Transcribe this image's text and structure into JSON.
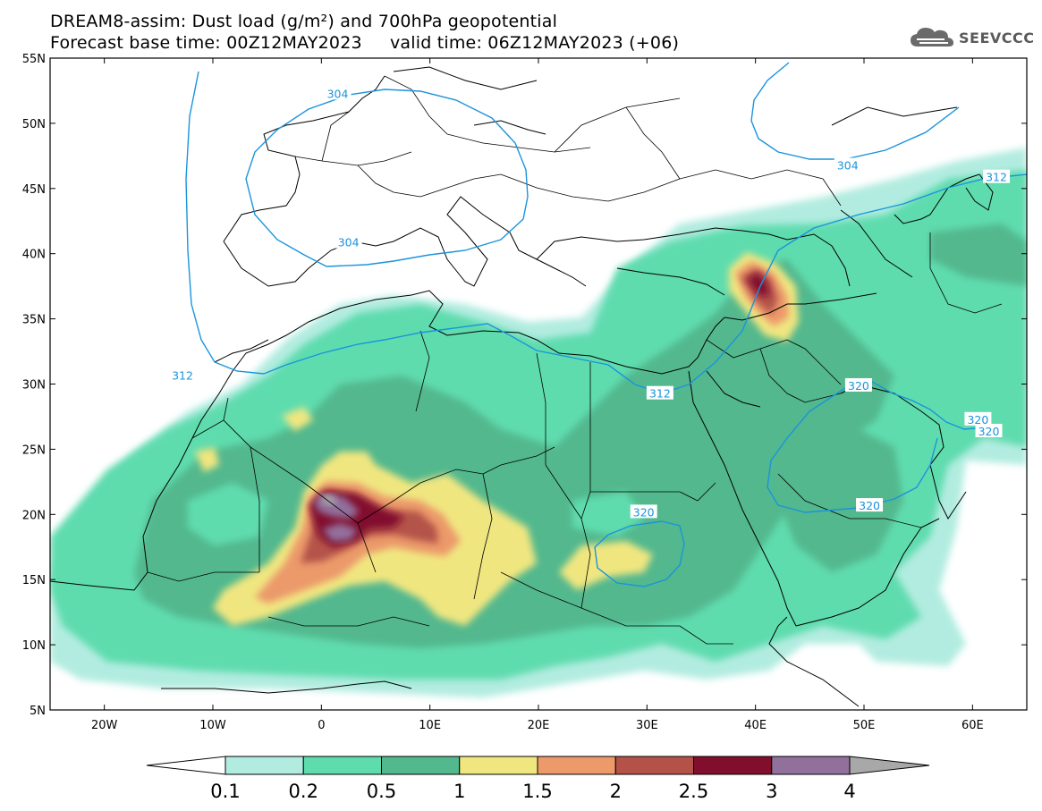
{
  "title": {
    "line1": "DREAM8-assim: Dust load (g/m²) and 700hPa geopotential",
    "line2": "Forecast base time: 00Z12MAY2023     valid time: 06Z12MAY2023 (+06)"
  },
  "logo": {
    "text": "SEEVCCC",
    "icon": "cloud-icon"
  },
  "map": {
    "lon_range": [
      -25,
      65
    ],
    "lat_range": [
      5,
      55
    ],
    "lat_ticks": [
      {
        "v": 55,
        "label": "55N"
      },
      {
        "v": 50,
        "label": "50N"
      },
      {
        "v": 45,
        "label": "45N"
      },
      {
        "v": 40,
        "label": "40N"
      },
      {
        "v": 35,
        "label": "35N"
      },
      {
        "v": 30,
        "label": "30N"
      },
      {
        "v": 25,
        "label": "25N"
      },
      {
        "v": 20,
        "label": "20N"
      },
      {
        "v": 15,
        "label": "15N"
      },
      {
        "v": 10,
        "label": "10N"
      },
      {
        "v": 5,
        "label": "5N"
      }
    ],
    "lon_ticks": [
      {
        "v": -20,
        "label": "20W"
      },
      {
        "v": -10,
        "label": "10W"
      },
      {
        "v": 0,
        "label": "0"
      },
      {
        "v": 10,
        "label": "10E"
      },
      {
        "v": 20,
        "label": "20E"
      },
      {
        "v": 30,
        "label": "30E"
      },
      {
        "v": 40,
        "label": "40E"
      },
      {
        "v": 50,
        "label": "50E"
      },
      {
        "v": 60,
        "label": "60E"
      }
    ],
    "contour_labels": [
      {
        "text": "304",
        "lon": 1.5,
        "lat": 52.3
      },
      {
        "text": "304",
        "lon": 2.5,
        "lat": 40.9
      },
      {
        "text": "304",
        "lon": 48.5,
        "lat": 46.8
      },
      {
        "text": "312",
        "lon": -12.8,
        "lat": 30.7
      },
      {
        "text": "312",
        "lon": 31.2,
        "lat": 29.3
      },
      {
        "text": "312",
        "lon": 62.2,
        "lat": 45.9
      },
      {
        "text": "320",
        "lon": 49.5,
        "lat": 29.9
      },
      {
        "text": "320",
        "lon": 60.5,
        "lat": 27.3
      },
      {
        "text": "320",
        "lon": 61.5,
        "lat": 26.4
      },
      {
        "text": "320",
        "lon": 29.7,
        "lat": 20.2
      },
      {
        "text": "320",
        "lon": 50.5,
        "lat": 20.7
      }
    ]
  },
  "colorbar": {
    "bins": [
      {
        "color": "#b2ece0"
      },
      {
        "color": "#5edcae"
      },
      {
        "color": "#52b88e"
      },
      {
        "color": "#f0e680"
      },
      {
        "color": "#ec9a6a"
      },
      {
        "color": "#b4524a"
      },
      {
        "color": "#820e2e"
      },
      {
        "color": "#92709c"
      }
    ],
    "below_color": "#ffffff",
    "above_color": "#a8a8a8",
    "labels": [
      "0.1",
      "0.2",
      "0.5",
      "1",
      "1.5",
      "2",
      "2.5",
      "3",
      "4"
    ]
  }
}
